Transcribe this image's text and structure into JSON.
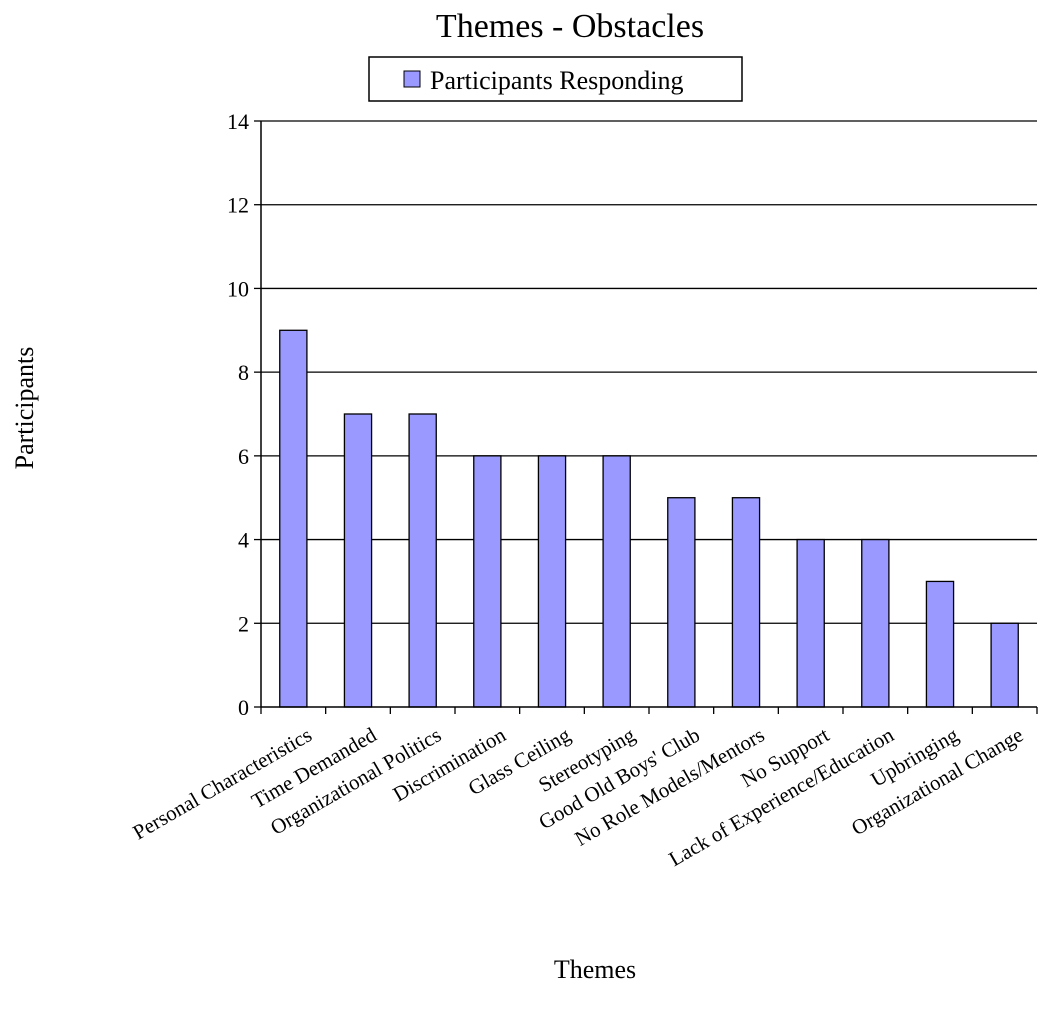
{
  "chart_data": {
    "type": "bar",
    "title": "Themes - Obstacles",
    "xlabel": "Themes",
    "ylabel": "Participants",
    "categories": [
      "Personal Characteristics",
      "Time Demanded",
      "Organizational Politics",
      "Discrimination",
      "Glass Ceiling",
      "Stereotyping",
      "Good Old Boys' Club",
      "No Role Models/Mentors",
      "No Support",
      "Lack of Experience/Education",
      "Upbringing",
      "Organizational Change"
    ],
    "series": [
      {
        "name": "Participants Responding",
        "values": [
          9,
          7,
          7,
          6,
          6,
          6,
          5,
          5,
          4,
          4,
          3,
          2
        ]
      }
    ],
    "ylim": [
      0,
      14
    ],
    "yticks": [
      0,
      2,
      4,
      6,
      8,
      10,
      12,
      14
    ],
    "grid": true,
    "legend_position": "top",
    "colors": {
      "bar_fill": "#9999ff",
      "bar_stroke": "#000000",
      "grid": "#000000"
    }
  }
}
